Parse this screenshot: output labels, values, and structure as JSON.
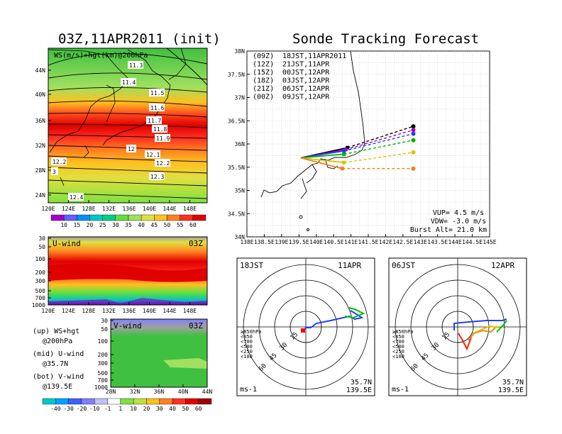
{
  "titles": {
    "left": "03Z,11APR2011 (init)",
    "right": "Sonde Tracking Forecast"
  },
  "map_top": {
    "field_label": "WS(m/s)+hgt(km)@200hPa",
    "lat_ticks": [
      "44N",
      "40N",
      "36N",
      "32N",
      "28N",
      "24N"
    ],
    "lon_ticks": [
      "120E",
      "124E",
      "128E",
      "132E",
      "136E",
      "140E",
      "144E",
      "148E"
    ],
    "contour_labels": [
      "11.3",
      "11.4",
      "11.5",
      "11.6",
      "11.7",
      "11.8",
      "11.9",
      "12",
      "12.1",
      "12.2",
      "12.2",
      "12.3",
      "12.4",
      "3"
    ],
    "colorbar_ticks": [
      "10",
      "15",
      "20",
      "25",
      "30",
      "35",
      "40",
      "45",
      "50",
      "55",
      "60"
    ],
    "colorbar_colors": [
      "#a000d0",
      "#6060ff",
      "#0090ff",
      "#00c8c8",
      "#00d080",
      "#60e040",
      "#a0e060",
      "#e0e040",
      "#ffc020",
      "#ff8020",
      "#ff3020",
      "#e00000"
    ]
  },
  "uwind": {
    "label": "U-wind",
    "time": "03Z",
    "p_ticks": [
      "30",
      "50",
      "100",
      "200",
      "300",
      "500",
      "700",
      "1000"
    ],
    "lon_ticks": [
      "120E",
      "124E",
      "128E",
      "132E",
      "136E",
      "140E",
      "144E",
      "148E"
    ]
  },
  "vwind": {
    "label": "V-wind",
    "time": "03Z",
    "p_ticks": [
      "30",
      "50",
      "100",
      "200",
      "300",
      "500",
      "700",
      "1000"
    ],
    "lat_ticks": [
      "28N",
      "32N",
      "36N",
      "40N",
      "44N"
    ],
    "colorbar_ticks": [
      "-40",
      "-30",
      "-20",
      "-10",
      "-1",
      "1",
      "10",
      "20",
      "30",
      "40",
      "50",
      "60"
    ]
  },
  "legend_notes": [
    {
      "a": "(up) WS+hgt",
      "b": "@200hPa"
    },
    {
      "a": "(mid) U-wind",
      "b": "@35.7N"
    },
    {
      "a": "(bot) V-wind",
      "b": "@139.5E"
    }
  ],
  "track": {
    "lat_ticks": [
      "38N",
      "37.5N",
      "37N",
      "36.5N",
      "36N",
      "35.5N",
      "35N",
      "34.5N",
      "34N"
    ],
    "lon_ticks": [
      "138E",
      "138.5E",
      "139E",
      "139.5E",
      "140E",
      "140.5E",
      "141E",
      "141.5E",
      "142E",
      "142.5E",
      "143E",
      "143.5E",
      "144E",
      "144.5E",
      "145E"
    ],
    "launches": [
      {
        "code": "(09Z)",
        "label": "18JST,11APR2011",
        "color": "#000000"
      },
      {
        "code": "(12Z)",
        "label": "21JST,11APR",
        "color": "#b000b0"
      },
      {
        "code": "(15Z)",
        "label": "00JST,12APR",
        "color": "#2040ff"
      },
      {
        "code": "(18Z)",
        "label": "03JST,12APR",
        "color": "#00b000"
      },
      {
        "code": "(21Z)",
        "label": "06JST,12APR",
        "color": "#e0c000"
      },
      {
        "code": "(00Z)",
        "label": "09JST,12APR",
        "color": "#f08020"
      }
    ],
    "vup": "VUP= 4.5 m/s",
    "vdw": "VDW= -3.0 m/s",
    "burst": "Burst Alt= 21.0 km"
  },
  "hodo_left": {
    "time": "18JST",
    "date": "11APR",
    "rings": [
      "15",
      "30",
      "45",
      "60"
    ],
    "legend": [
      {
        "text": "≥850hPa",
        "color": "#ff0000"
      },
      {
        "text": "<850",
        "color": "#ff8000"
      },
      {
        "text": "<700",
        "color": "#e0c000"
      },
      {
        "text": "<500",
        "color": "#00c000"
      },
      {
        "text": "<250",
        "color": "#00c0c0"
      },
      {
        "text": "<100",
        "color": "#2040ff"
      }
    ],
    "units": "ms-1",
    "lat": "35.7N",
    "lon": "139.5E"
  },
  "hodo_right": {
    "time": "06JST",
    "date": "12APR",
    "rings": [
      "15",
      "30",
      "45",
      "60"
    ],
    "legend": [
      {
        "text": "≥850hPa",
        "color": "#ff0000"
      },
      {
        "text": "<850",
        "color": "#ff8000"
      },
      {
        "text": "<700",
        "color": "#e0c000"
      },
      {
        "text": "<500",
        "color": "#00c000"
      },
      {
        "text": "<250",
        "color": "#00c0c0"
      },
      {
        "text": "<100",
        "color": "#2040ff"
      }
    ],
    "units": "ms-1",
    "lat": "35.7N",
    "lon": "139.5E"
  },
  "chart_data": [
    {
      "type": "heatmap",
      "title": "03Z,11APR2011 (init)",
      "field": "WS(m/s)+hgt(km)@200hPa",
      "x_range": [
        "120E",
        "150E"
      ],
      "y_range": [
        "22N",
        "47N"
      ]
    },
    {
      "type": "heatmap",
      "title": "U-wind",
      "time": "03Z",
      "y_scale": "log-pressure (hPa)"
    },
    {
      "type": "heatmap",
      "title": "V-wind",
      "time": "03Z",
      "y_scale": "log-pressure (hPa)"
    },
    {
      "type": "line",
      "title": "Sonde Tracking Forecast",
      "xlim": [
        138,
        145
      ],
      "ylim": [
        34,
        38
      ],
      "series": [
        {
          "name": "(09Z) 18JST,11APR2011",
          "color": "#000000",
          "x": [
            139.55,
            140.9,
            142.8
          ],
          "y": [
            35.7,
            35.92,
            36.38
          ]
        },
        {
          "name": "(12Z) 21JST,11APR",
          "color": "#b000b0",
          "x": [
            139.55,
            140.85,
            142.8
          ],
          "y": [
            35.7,
            35.88,
            36.3
          ]
        },
        {
          "name": "(15Z) 00JST,12APR",
          "color": "#2040ff",
          "x": [
            139.55,
            140.8,
            142.8
          ],
          "y": [
            35.7,
            35.85,
            36.22
          ]
        },
        {
          "name": "(18Z) 03JST,12APR",
          "color": "#00b000",
          "x": [
            139.55,
            140.8,
            142.8
          ],
          "y": [
            35.7,
            35.78,
            36.08
          ]
        },
        {
          "name": "(21Z) 06JST,12APR",
          "color": "#e0c000",
          "x": [
            139.55,
            140.8,
            142.8
          ],
          "y": [
            35.7,
            35.6,
            35.82
          ]
        },
        {
          "name": "(00Z) 09JST,12APR",
          "color": "#f08020",
          "x": [
            139.55,
            140.75,
            142.8
          ],
          "y": [
            35.7,
            35.47,
            35.47
          ]
        }
      ]
    }
  ]
}
